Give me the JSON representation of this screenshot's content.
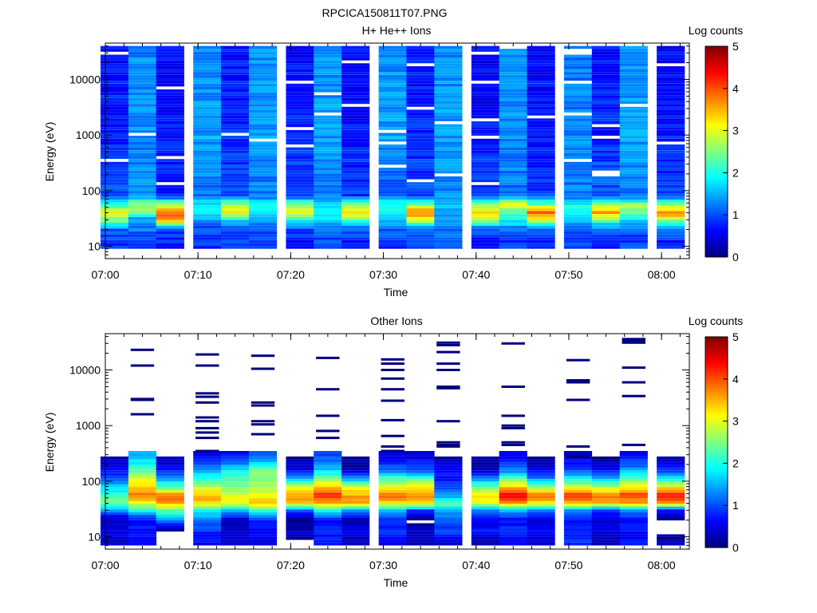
{
  "figure": {
    "title": "RPCICA150811T07.PNG"
  },
  "colorscale": {
    "stops": [
      "#00007f",
      "#0000ff",
      "#0080ff",
      "#00ffff",
      "#80ff80",
      "#ffff00",
      "#ff8000",
      "#ff0000",
      "#7f0000"
    ]
  },
  "chart_data": [
    {
      "type": "heatmap",
      "title": "H+ He++ Ions",
      "xlabel": "Time",
      "ylabel": "Energy (eV)",
      "colorbar_label": "Log counts",
      "colorbar_ticks": [
        "0",
        "1",
        "2",
        "3",
        "4",
        "5"
      ],
      "x_tick_labels": [
        "07:00",
        "07:10",
        "07:20",
        "07:30",
        "07:40",
        "07:50",
        "08:00"
      ],
      "y_tick_labels": [
        "10",
        "100",
        "1000",
        "10000"
      ],
      "y_scale": "log",
      "xlim": [
        "07:00",
        "08:03"
      ],
      "ylim": [
        6,
        45000
      ],
      "zlim": [
        0,
        5
      ],
      "time_bins": [
        "07:01",
        "07:04",
        "07:07",
        "07:11",
        "07:14",
        "07:17",
        "07:21",
        "07:24",
        "07:27",
        "07:31",
        "07:34",
        "07:37",
        "07:41",
        "07:44",
        "07:47",
        "07:51",
        "07:54",
        "07:57",
        "08:01"
      ],
      "profile_log_counts": [
        {
          "energy": 8,
          "values": [
            0.9,
            0.7,
            0.5,
            0.6,
            0.8,
            0.9,
            0.6,
            0.9,
            0.7,
            0.9,
            0.8,
            1.0,
            0.7,
            0.9,
            0.9,
            0.9,
            0.7,
            0.9,
            0.8
          ]
        },
        {
          "energy": 12,
          "values": [
            0.9,
            1.0,
            0.8,
            0.9,
            0.9,
            0.8,
            0.7,
            1.0,
            0.8,
            0.9,
            0.9,
            1.0,
            0.8,
            0.9,
            0.8,
            0.9,
            0.8,
            0.9,
            0.8
          ]
        },
        {
          "energy": 20,
          "values": [
            1.1,
            1.2,
            1.0,
            1.0,
            1.1,
            1.0,
            1.0,
            1.1,
            1.0,
            1.1,
            1.0,
            1.2,
            1.0,
            1.1,
            1.0,
            1.0,
            1.0,
            1.1,
            1.0
          ]
        },
        {
          "energy": 30,
          "values": [
            2.6,
            1.3,
            3.6,
            1.4,
            1.7,
            1.4,
            1.9,
            1.6,
            2.4,
            1.6,
            3.0,
            1.3,
            2.6,
            1.9,
            2.9,
            1.6,
            2.4,
            1.8,
            2.6
          ]
        },
        {
          "energy": 40,
          "values": [
            3.2,
            2.3,
            3.8,
            1.9,
            3.3,
            1.9,
            3.4,
            1.9,
            3.5,
            2.0,
            3.8,
            1.6,
            3.5,
            2.3,
            3.8,
            2.0,
            3.8,
            2.4,
            3.9
          ]
        },
        {
          "energy": 55,
          "values": [
            2.2,
            2.7,
            2.8,
            1.8,
            2.6,
            1.9,
            2.6,
            1.9,
            2.5,
            2.1,
            2.6,
            1.6,
            2.6,
            3.1,
            2.5,
            2.0,
            2.6,
            2.6,
            2.6
          ]
        },
        {
          "energy": 80,
          "values": [
            1.0,
            1.3,
            0.8,
            1.2,
            1.1,
            1.2,
            1.0,
            1.2,
            0.9,
            1.1,
            1.0,
            1.3,
            1.0,
            1.2,
            0.9,
            1.2,
            1.1,
            1.2,
            1.0
          ]
        },
        {
          "energy": 1000,
          "values": [
            0.8,
            1.3,
            0.7,
            1.4,
            0.8,
            1.4,
            0.8,
            1.4,
            0.7,
            1.4,
            0.8,
            1.4,
            0.7,
            1.3,
            0.7,
            1.3,
            0.8,
            1.4,
            0.7
          ]
        },
        {
          "energy": 40000,
          "values": [
            0.7,
            1.3,
            0.6,
            1.3,
            0.7,
            1.3,
            0.7,
            1.3,
            0.6,
            1.3,
            0.7,
            1.3,
            0.6,
            1.3,
            0.6,
            1.2,
            0.7,
            1.3,
            0.6
          ]
        }
      ]
    },
    {
      "type": "heatmap",
      "title": "Other Ions",
      "xlabel": "Time",
      "ylabel": "Energy (eV)",
      "colorbar_label": "Log counts",
      "colorbar_ticks": [
        "0",
        "1",
        "2",
        "3",
        "4",
        "5"
      ],
      "x_tick_labels": [
        "07:00",
        "07:10",
        "07:20",
        "07:30",
        "07:40",
        "07:50",
        "08:00"
      ],
      "y_tick_labels": [
        "10",
        "100",
        "1000",
        "10000"
      ],
      "y_scale": "log",
      "xlim": [
        "07:00",
        "08:03"
      ],
      "ylim": [
        6,
        45000
      ],
      "zlim": [
        0,
        5
      ],
      "time_bins": [
        "07:01",
        "07:04",
        "07:07",
        "07:11",
        "07:14",
        "07:17",
        "07:21",
        "07:24",
        "07:27",
        "07:31",
        "07:34",
        "07:37",
        "07:41",
        "07:44",
        "07:47",
        "07:51",
        "07:54",
        "07:57",
        "08:01"
      ],
      "profile_log_counts": [
        {
          "energy": 8,
          "values": [
            0.4,
            0.6,
            0.0,
            0.6,
            0.3,
            0.4,
            0.0,
            0.7,
            0.3,
            0.6,
            0.2,
            0.3,
            0.3,
            0.5,
            0.4,
            0.8,
            0.3,
            0.6,
            0.3
          ]
        },
        {
          "energy": 12,
          "values": [
            0.5,
            0.8,
            0.0,
            0.8,
            0.5,
            0.6,
            0.4,
            0.8,
            0.5,
            0.8,
            0.3,
            0.9,
            0.7,
            0.9,
            0.6,
            0.8,
            0.4,
            0.7,
            0.0
          ]
        },
        {
          "energy": 20,
          "values": [
            0.3,
            0.6,
            1.3,
            1.3,
            0.3,
            0.8,
            0.0,
            0.6,
            0.3,
            0.8,
            0.0,
            1.0,
            0.5,
            0.6,
            0.4,
            0.7,
            0.4,
            0.7,
            0.0
          ]
        },
        {
          "energy": 30,
          "values": [
            1.4,
            1.9,
            2.3,
            1.9,
            1.6,
            2.2,
            1.2,
            2.0,
            1.5,
            1.7,
            0.9,
            1.6,
            1.3,
            1.6,
            1.1,
            1.4,
            0.9,
            1.3,
            0.7
          ]
        },
        {
          "energy": 40,
          "values": [
            2.5,
            3.0,
            3.6,
            3.3,
            3.0,
            3.4,
            3.4,
            3.6,
            3.5,
            3.2,
            3.3,
            2.4,
            3.0,
            3.5,
            3.2,
            3.5,
            3.4,
            3.5,
            3.6
          ]
        },
        {
          "energy": 55,
          "values": [
            2.2,
            3.8,
            3.9,
            3.5,
            3.0,
            3.1,
            3.7,
            4.2,
            3.6,
            3.9,
            3.8,
            1.3,
            3.3,
            4.5,
            3.8,
            4.3,
            3.9,
            4.2,
            4.4
          ]
        },
        {
          "energy": 80,
          "values": [
            1.6,
            3.3,
            2.2,
            2.8,
            2.5,
            2.6,
            3.0,
            3.4,
            2.9,
            3.1,
            3.1,
            1.0,
            2.4,
            3.4,
            2.6,
            2.8,
            2.7,
            3.1,
            3.1
          ]
        },
        {
          "energy": 120,
          "values": [
            0.9,
            2.8,
            1.3,
            1.9,
            2.3,
            2.6,
            1.3,
            2.4,
            1.1,
            2.1,
            2.0,
            0.7,
            1.0,
            2.0,
            1.0,
            1.7,
            1.1,
            2.1,
            1.6
          ]
        },
        {
          "energy": 160,
          "values": [
            0.7,
            2.2,
            0.7,
            1.3,
            1.8,
            2.4,
            0.6,
            1.6,
            0.3,
            1.1,
            1.0,
            0.6,
            0.3,
            1.2,
            0.6,
            1.0,
            0.6,
            1.4,
            0.9
          ]
        },
        {
          "energy": 300,
          "values": [
            0.0,
            1.5,
            0.0,
            0.5,
            0.6,
            1.0,
            0.0,
            0.9,
            0.0,
            0.4,
            0.4,
            0.0,
            0.0,
            0.6,
            0.0,
            0.3,
            0.0,
            0.5,
            0.0
          ]
        }
      ],
      "sparse_count_lines_eV": [
        {
          "time": "07:04",
          "energies": [
            23000,
            12000,
            3000,
            2900,
            1600
          ]
        },
        {
          "time": "07:11",
          "energies": [
            19000,
            12000,
            3800,
            3300,
            2600,
            1400,
            1200,
            900,
            750,
            600,
            350
          ]
        },
        {
          "time": "07:17",
          "energies": [
            18000,
            10500,
            2600,
            2300,
            1200,
            1050,
            700
          ]
        },
        {
          "time": "07:24",
          "energies": [
            16500,
            4500,
            1500,
            800,
            600
          ]
        },
        {
          "time": "07:31",
          "energies": [
            15500,
            13000,
            10000,
            7000,
            4500,
            2800,
            1250,
            650,
            420,
            350
          ]
        },
        {
          "time": "07:37",
          "energies": [
            31000,
            28000,
            21000,
            13000,
            10000,
            5000,
            4700,
            1200,
            500,
            450,
            420
          ]
        },
        {
          "time": "07:44",
          "energies": [
            30000,
            5000,
            1500,
            1000,
            900,
            500,
            450
          ]
        },
        {
          "time": "07:51",
          "energies": [
            15000,
            6500,
            6000,
            2900,
            420,
            270
          ]
        },
        {
          "time": "07:57",
          "energies": [
            36000,
            33000,
            31000,
            11000,
            6000,
            3400,
            450
          ]
        }
      ]
    }
  ]
}
